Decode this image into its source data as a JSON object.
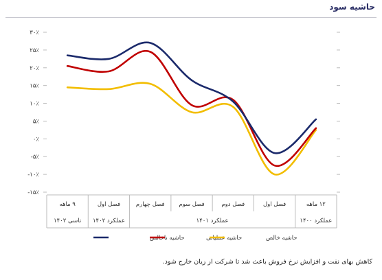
{
  "chart_data": {
    "type": "line",
    "title": "حاشیه سود",
    "y_ticks": [
      "۳۰٪",
      "۲۵٪",
      "۲۰٪",
      "۱۵٪",
      "۱۰٪",
      "۵٪",
      "۰٪",
      "-۵٪",
      "-۱۰٪",
      "-۱۵٪"
    ],
    "ylim": [
      -15,
      30
    ],
    "categories": [
      "۱۲ ماهه",
      "فصل اول",
      "فصل دوم",
      "فصل سوم",
      "فصل چهارم",
      "فصل اول",
      "۹ ماهه"
    ],
    "groups": [
      {
        "label": "عملکرد ۱۴۰۰",
        "span": [
          0,
          0
        ]
      },
      {
        "label": "عملکرد ۱۴۰۱",
        "span": [
          1,
          4
        ]
      },
      {
        "label": "عملکرد ۱۴۰۲",
        "span": [
          5,
          5
        ]
      },
      {
        "label": "تاسی ۱۴۰۲",
        "span": [
          6,
          6
        ]
      }
    ],
    "series": [
      {
        "name": "حاشیه ناخالص",
        "color": "#1b2a6b",
        "values": [
          5.5,
          -4,
          10.5,
          16.5,
          27,
          22.5,
          23.5
        ]
      },
      {
        "name": "حاشیه عملیاتی",
        "color": "#c00000",
        "values": [
          3,
          -7.5,
          11,
          9.5,
          24.5,
          19,
          20.5
        ]
      },
      {
        "name": "حاشیه خالص",
        "color": "#f2bd00",
        "values": [
          2.5,
          -10,
          9,
          7.5,
          15.5,
          14,
          14.5
        ]
      }
    ],
    "grid": false,
    "legend": "bottom-center"
  },
  "footnote": "کاهش بهای نفت و افزایش نرخ فروش باعث شد تا شرکت از زیان خارج شود."
}
